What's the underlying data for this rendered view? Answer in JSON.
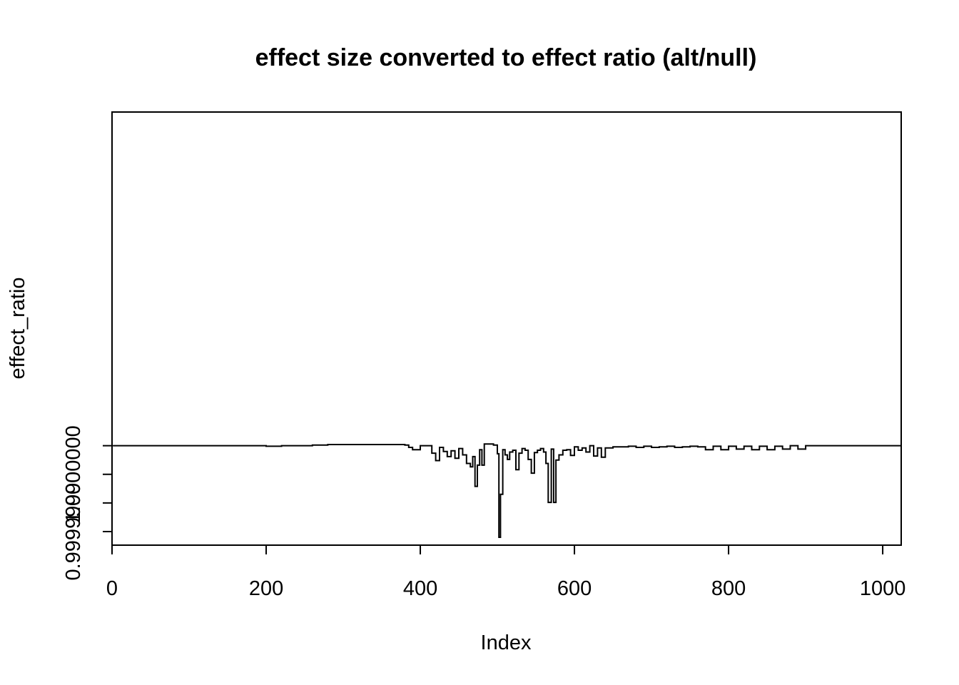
{
  "chart_data": {
    "type": "line",
    "title": "effect size converted to effect ratio (alt/null)",
    "xlabel": "Index",
    "ylabel": "effect_ratio",
    "xlim": [
      0,
      1024
    ],
    "ylim": [
      0.9999998763,
      1.0000006328
    ],
    "x_ticks": [
      0,
      200,
      400,
      600,
      800,
      1000
    ],
    "x_tick_labels": [
      "0",
      "200",
      "400",
      "600",
      "800",
      "1000"
    ],
    "y_ticks": [
      0.9999999,
      0.99999995,
      1.0,
      1.00000005
    ],
    "y_tick_labels": [
      "0.9999999",
      "",
      "1.0000000",
      ""
    ],
    "series": [
      {
        "name": "effect_ratio",
        "step": "s",
        "points": [
          [
            1,
            1.00000005
          ],
          [
            20,
            1.00000005
          ],
          [
            40,
            1.00000005
          ],
          [
            60,
            1.00000005
          ],
          [
            80,
            1.00000005
          ],
          [
            100,
            1.00000005
          ],
          [
            120,
            1.00000005
          ],
          [
            140,
            1.00000005
          ],
          [
            160,
            1.00000005
          ],
          [
            180,
            1.00000005
          ],
          [
            200,
            1.000000049
          ],
          [
            220,
            1.00000005
          ],
          [
            240,
            1.00000005
          ],
          [
            260,
            1.000000051
          ],
          [
            280,
            1.000000052
          ],
          [
            300,
            1.000000052
          ],
          [
            320,
            1.000000052
          ],
          [
            340,
            1.000000052
          ],
          [
            360,
            1.000000052
          ],
          [
            380,
            1.000000051
          ],
          [
            385,
            1.000000047
          ],
          [
            390,
            1.000000043
          ],
          [
            400,
            1.00000005
          ],
          [
            410,
            1.00000005
          ],
          [
            415,
            1.000000037
          ],
          [
            420,
            1.000000024
          ],
          [
            425,
            1.000000047
          ],
          [
            430,
            1.00000004
          ],
          [
            435,
            1.000000031
          ],
          [
            440,
            1.000000041
          ],
          [
            445,
            1.000000028
          ],
          [
            450,
            1.000000045
          ],
          [
            455,
            1.000000034
          ],
          [
            460,
            1.000000019
          ],
          [
            465,
            1.000000013
          ],
          [
            468,
            1.000000031
          ],
          [
            471,
            0.999999979
          ],
          [
            474,
            1.000000016
          ],
          [
            477,
            1.000000043
          ],
          [
            480,
            1.000000016
          ],
          [
            483,
            1.000000053
          ],
          [
            490,
            1.000000053
          ],
          [
            495,
            1.000000051
          ],
          [
            500,
            1.000000036
          ],
          [
            502,
            0.99999989
          ],
          [
            504,
            0.999999965
          ],
          [
            507,
            1.000000043
          ],
          [
            510,
            1.000000034
          ],
          [
            513,
            1.000000026
          ],
          [
            516,
            1.000000039
          ],
          [
            520,
            1.000000042
          ],
          [
            524,
            1.000000008
          ],
          [
            528,
            1.000000037
          ],
          [
            532,
            1.000000045
          ],
          [
            536,
            1.000000042
          ],
          [
            540,
            1.000000026
          ],
          [
            544,
            1.000000002
          ],
          [
            548,
            1.000000038
          ],
          [
            552,
            1.000000042
          ],
          [
            556,
            1.000000045
          ],
          [
            560,
            1.000000039
          ],
          [
            563,
            1.000000019
          ],
          [
            566,
            0.999999951
          ],
          [
            570,
            1.000000044
          ],
          [
            573,
            0.999999951
          ],
          [
            576,
            1.000000025
          ],
          [
            580,
            1.000000034
          ],
          [
            585,
            1.000000042
          ],
          [
            590,
            1.000000043
          ],
          [
            595,
            1.000000033
          ],
          [
            600,
            1.000000048
          ],
          [
            605,
            1.000000042
          ],
          [
            610,
            1.000000046
          ],
          [
            615,
            1.000000039
          ],
          [
            620,
            1.00000005
          ],
          [
            625,
            1.000000032
          ],
          [
            630,
            1.000000046
          ],
          [
            635,
            1.00000003
          ],
          [
            640,
            1.000000046
          ],
          [
            650,
            1.000000048
          ],
          [
            660,
            1.000000048
          ],
          [
            670,
            1.000000049
          ],
          [
            680,
            1.000000047
          ],
          [
            690,
            1.000000049
          ],
          [
            700,
            1.000000047
          ],
          [
            710,
            1.000000048
          ],
          [
            720,
            1.000000049
          ],
          [
            730,
            1.000000047
          ],
          [
            740,
            1.000000048
          ],
          [
            750,
            1.000000049
          ],
          [
            760,
            1.000000048
          ],
          [
            770,
            1.000000043
          ],
          [
            780,
            1.000000049
          ],
          [
            790,
            1.000000043
          ],
          [
            800,
            1.000000049
          ],
          [
            810,
            1.000000044
          ],
          [
            820,
            1.000000049
          ],
          [
            830,
            1.000000043
          ],
          [
            840,
            1.000000049
          ],
          [
            850,
            1.000000043
          ],
          [
            860,
            1.000000049
          ],
          [
            870,
            1.000000044
          ],
          [
            880,
            1.00000005
          ],
          [
            890,
            1.000000044
          ],
          [
            900,
            1.00000005
          ],
          [
            920,
            1.00000005
          ],
          [
            940,
            1.00000005
          ],
          [
            960,
            1.00000005
          ],
          [
            980,
            1.00000005
          ],
          [
            1000,
            1.00000005
          ],
          [
            1024,
            1.00000005
          ]
        ]
      }
    ]
  }
}
